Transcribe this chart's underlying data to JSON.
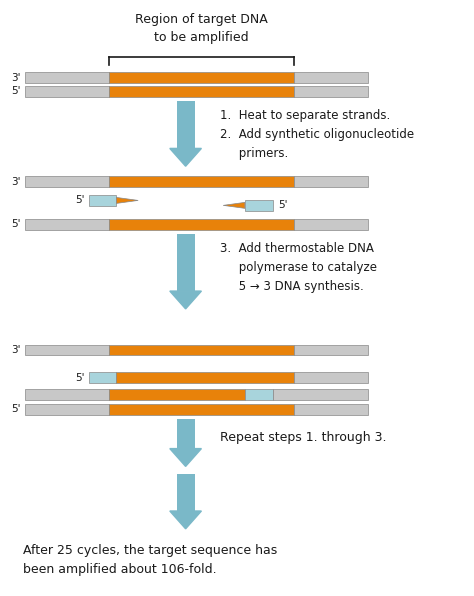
{
  "bg_color": "#ffffff",
  "gray_color": "#c8c8c8",
  "orange_color": "#e8820a",
  "light_blue_color": "#a8d4dc",
  "arrow_color": "#7ab8c8",
  "text_color": "#1a1a1a",
  "title1": "Region of target DNA",
  "title2": "to be amplified",
  "step1_text": "1.  Heat to separate strands.\n2.  Add synthetic oligonucleotide\n     primers.",
  "step2_text": "3.  Add thermostable DNA\n     polymerase to catalyze\n     5 → 3 DNA synthesis.",
  "step3_text": "Repeat steps 1. through 3.",
  "final_text": "After 25 cycles, the target sequence has\nbeen amplified about 106-fold.",
  "fig_width": 4.74,
  "fig_height": 5.96,
  "dpi": 100
}
